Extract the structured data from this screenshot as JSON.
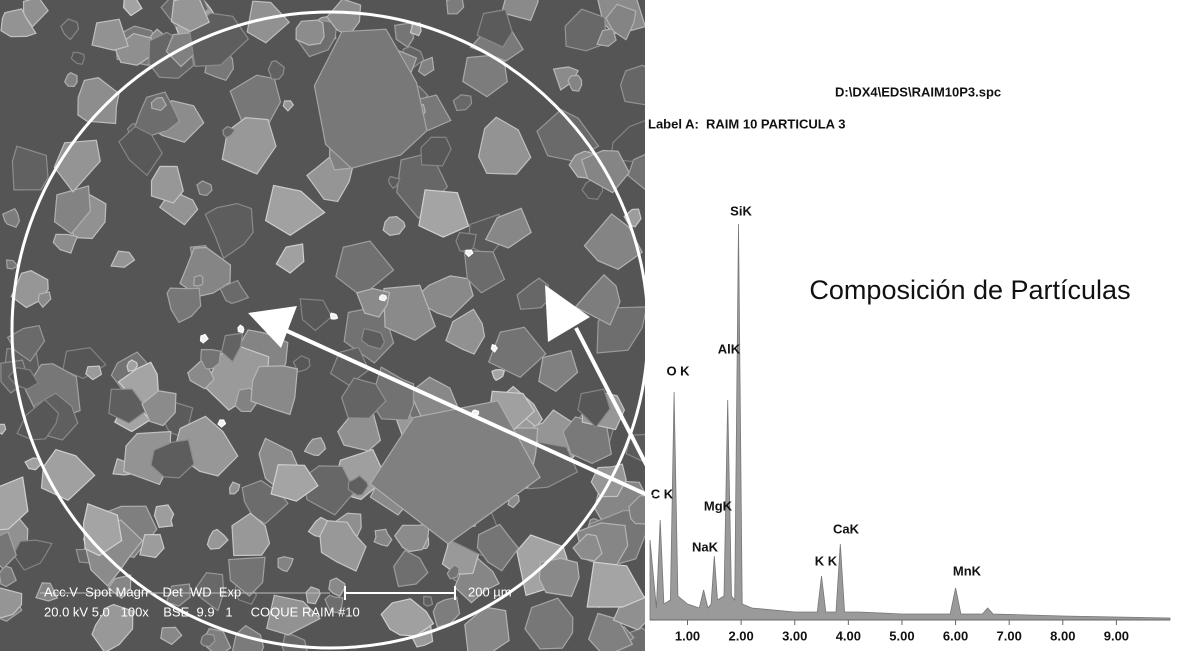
{
  "micrograph": {
    "info_header": "Acc.V  Spot Magn    Det  WD  Exp",
    "info_values": "20.0 kV 5.0   100x    BSE  9.9   1     COQUE RAIM #10",
    "scale_bar": "200 µm"
  },
  "chart_data": {
    "type": "area",
    "title": "Composición de Partículas",
    "file": "D:\\DX4\\EDS\\RAIM10P3.spc",
    "label": "Label A:  RAIM 10 PARTICULA 3",
    "x": [
      0.3,
      0.42,
      0.49,
      0.56,
      0.68,
      0.75,
      0.82,
      1.0,
      1.22,
      1.3,
      1.38,
      1.44,
      1.5,
      1.56,
      1.68,
      1.75,
      1.82,
      1.88,
      1.95,
      2.02,
      2.2,
      3.0,
      3.42,
      3.5,
      3.58,
      3.77,
      3.85,
      3.93,
      4.2,
      5.0,
      5.9,
      6.0,
      6.1,
      6.5,
      6.6,
      6.7,
      8.0,
      10.0
    ],
    "values": [
      20,
      3,
      25,
      4,
      5,
      57,
      6,
      4,
      3,
      7.5,
      3,
      4,
      16,
      5,
      6,
      55,
      6,
      5,
      99,
      4,
      3,
      2,
      2,
      11,
      2,
      2,
      19,
      2,
      2,
      1.5,
      1.5,
      8,
      1.5,
      1.5,
      3,
      1.5,
      1,
      0.5
    ],
    "color": "#9a9a9a",
    "xlim": [
      0.3,
      10
    ],
    "ylim": [
      0,
      100
    ],
    "xticks": [
      {
        "value": 1,
        "label": "1.00"
      },
      {
        "value": 2,
        "label": "2.00"
      },
      {
        "value": 3,
        "label": "3.00"
      },
      {
        "value": 4,
        "label": "4.00"
      },
      {
        "value": 5,
        "label": "5.00"
      },
      {
        "value": 6,
        "label": "6.00"
      },
      {
        "value": 7,
        "label": "7.00"
      },
      {
        "value": 8,
        "label": "8.00"
      },
      {
        "value": 9,
        "label": "9.00"
      }
    ],
    "annotations": [
      "SiK",
      "AlK",
      "O K",
      "C K",
      "MgK",
      "NaK",
      "K K",
      "CaK",
      "MnK"
    ]
  }
}
